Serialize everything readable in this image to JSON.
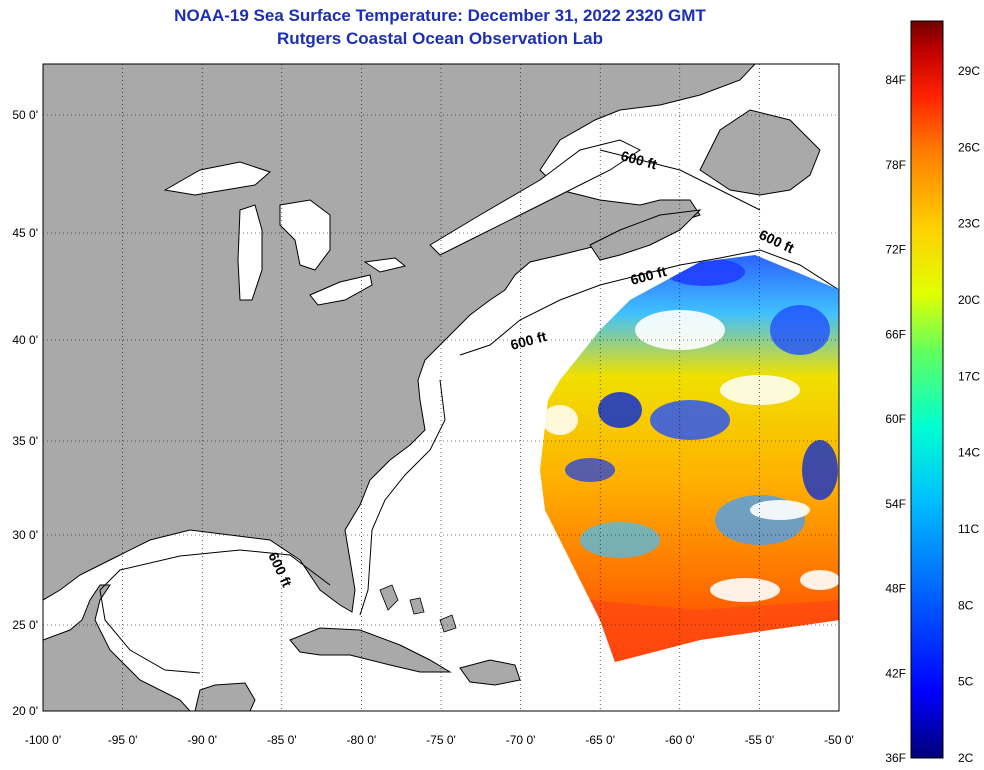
{
  "title": "NOAA-19 Sea Surface Temperature:  December 31, 2022 2320 GMT",
  "subtitle": "Rutgers Coastal Ocean Observation Lab",
  "lat_labels": [
    "50 0'",
    "45 0'",
    "40 0'",
    "35 0'",
    "30 0'",
    "25 0'",
    "20 0'"
  ],
  "lon_labels": [
    "-100 0'",
    "-95 0'",
    "-90 0'",
    "-85 0'",
    "-80 0'",
    "-75 0'",
    "-70 0'",
    "-65 0'",
    "-60 0'",
    "-55 0'",
    "-50 0'"
  ],
  "contour_label": "600 ft",
  "colorbar": {
    "fahrenheit": [
      "84F",
      "78F",
      "72F",
      "66F",
      "60F",
      "54F",
      "48F",
      "42F",
      "36F"
    ],
    "celsius": [
      "29C",
      "26C",
      "23C",
      "20C",
      "17C",
      "14C",
      "11C",
      "8C",
      "5C",
      "2C"
    ],
    "colors": [
      "#00007a",
      "#0000ff",
      "#0060ff",
      "#00c0ff",
      "#00ffd0",
      "#60ff60",
      "#e0ff00",
      "#ffd000",
      "#ff8000",
      "#ff2000",
      "#c00000",
      "#700000"
    ]
  },
  "colors": {
    "land": "#a9a9a9",
    "ocean": "#ffffff",
    "title": "#1d2fb4",
    "cloud": "#ffffff"
  }
}
